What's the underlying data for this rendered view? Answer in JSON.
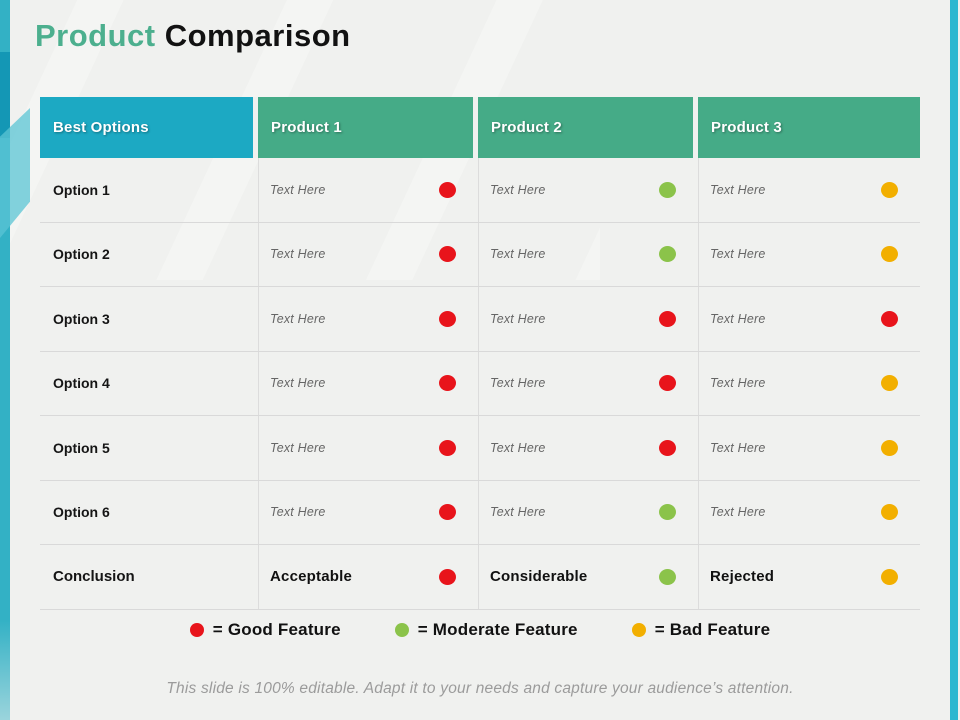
{
  "title": {
    "highlight": "Product",
    "rest": " Comparison"
  },
  "colors": {
    "title_green": "#4CAF8E",
    "header_teal": "#1CA9C3",
    "header_green": "#45AB87",
    "edge_left_teal": "#33B1C5",
    "edge_right_cyan": "#2BB7D0",
    "red": "#E8141B",
    "green": "#8BC34A",
    "yellow": "#F2AF00"
  },
  "table": {
    "headers": [
      {
        "label": "Best Options"
      },
      {
        "label": "Product 1"
      },
      {
        "label": "Product 2"
      },
      {
        "label": "Product 3"
      }
    ],
    "rows": [
      {
        "label": "Option 1",
        "cells": [
          {
            "text": "Text Here",
            "dot": "#E8141B"
          },
          {
            "text": "Text Here",
            "dot": "#8BC34A"
          },
          {
            "text": "Text Here",
            "dot": "#F2AF00"
          }
        ]
      },
      {
        "label": "Option 2",
        "cells": [
          {
            "text": "Text Here",
            "dot": "#E8141B"
          },
          {
            "text": "Text Here",
            "dot": "#8BC34A"
          },
          {
            "text": "Text Here",
            "dot": "#F2AF00"
          }
        ]
      },
      {
        "label": "Option 3",
        "cells": [
          {
            "text": "Text Here",
            "dot": "#E8141B"
          },
          {
            "text": "Text Here",
            "dot": "#E8141B"
          },
          {
            "text": "Text Here",
            "dot": "#E8141B"
          }
        ]
      },
      {
        "label": "Option 4",
        "cells": [
          {
            "text": "Text Here",
            "dot": "#E8141B"
          },
          {
            "text": "Text Here",
            "dot": "#E8141B"
          },
          {
            "text": "Text Here",
            "dot": "#F2AF00"
          }
        ]
      },
      {
        "label": "Option 5",
        "cells": [
          {
            "text": "Text Here",
            "dot": "#E8141B"
          },
          {
            "text": "Text Here",
            "dot": "#E8141B"
          },
          {
            "text": "Text Here",
            "dot": "#F2AF00"
          }
        ]
      },
      {
        "label": "Option 6",
        "cells": [
          {
            "text": "Text Here",
            "dot": "#E8141B"
          },
          {
            "text": "Text Here",
            "dot": "#8BC34A"
          },
          {
            "text": "Text Here",
            "dot": "#F2AF00"
          }
        ]
      },
      {
        "label": "Conclusion",
        "cells": [
          {
            "text": "Acceptable",
            "dot": "#E8141B"
          },
          {
            "text": "Considerable",
            "dot": "#8BC34A"
          },
          {
            "text": "Rejected",
            "dot": "#F2AF00"
          }
        ]
      }
    ]
  },
  "legend": [
    {
      "dot": "#E8141B",
      "label": "= Good Feature"
    },
    {
      "dot": "#8BC34A",
      "label": "= Moderate Feature"
    },
    {
      "dot": "#F2AF00",
      "label": "= Bad Feature"
    }
  ],
  "footer": {
    "text": "This slide is 100% editable. Adapt it to your needs and capture your audience’s attention."
  }
}
